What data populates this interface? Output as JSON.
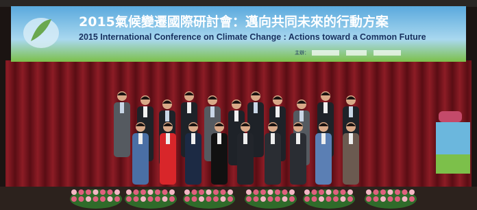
{
  "banner": {
    "title_zh": "2015氣候變遷國際研討會：邁向共同未來的行動方案",
    "title_en": "2015 International Conference on Climate Change : Actions toward a Common Future",
    "organizer_label": "主辦："
  }
}
